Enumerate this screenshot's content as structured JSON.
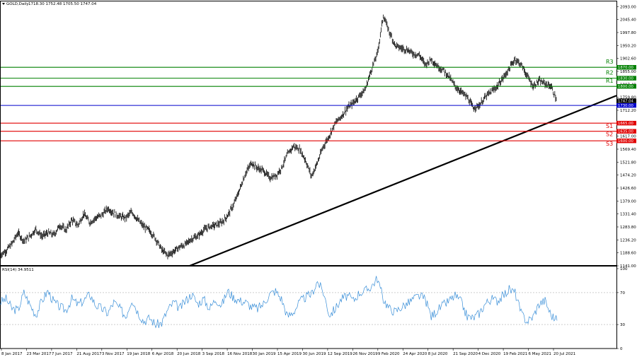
{
  "header": {
    "symbol": "GOLD,Daily",
    "ohlc": "1718.30 1752.48 1705.50 1747.04",
    "arrow": "down-triangle-icon"
  },
  "chart_data": [
    {
      "type": "line",
      "panel": "price",
      "style": "ohlc-bars",
      "x_labels": [
        "8 Jan 2017",
        "23 Mar 2017",
        "7 Jun 2017",
        "21 Aug 2017",
        "3 Nov 2017",
        "19 Jan 2018",
        "6 Apr 2018",
        "20 Jun 2018",
        "3 Sep 2018",
        "16 Nov 2018",
        "30 Jan 2019",
        "15 Apr 2019",
        "30 Jun 2019",
        "12 Sep 2019",
        "26 Nov 2019",
        "9 Feb 2020",
        "24 Apr 2020",
        "8 Jul 2020",
        "21 Sep 2020",
        "4 Dec 2020",
        "19 Feb 2021",
        "6 May 2021",
        "20 Jul 2021"
      ],
      "y_tick_labels": [
        "2093.00",
        "2045.40",
        "1997.80",
        "1950.20",
        "1902.60",
        "1855.00",
        "1807.40",
        "1759.80",
        "1712.20",
        "1664.60",
        "1617.00",
        "1569.40",
        "1521.80",
        "1474.20",
        "1426.60",
        "1379.00",
        "1331.40",
        "1283.80",
        "1236.20",
        "1188.60",
        "1141.00"
      ],
      "ylim": [
        1141,
        2112
      ],
      "series": [
        {
          "values": [
            1180,
            1196,
            1222,
            1262,
            1232,
            1250,
            1275,
            1249,
            1262,
            1255,
            1290,
            1272,
            1310,
            1290,
            1332,
            1300,
            1317,
            1327,
            1352,
            1335,
            1322,
            1317,
            1339,
            1310,
            1285,
            1270,
            1240,
            1200,
            1180,
            1194,
            1210,
            1220,
            1240,
            1250,
            1272,
            1285,
            1290,
            1300,
            1325,
            1365,
            1420,
            1480,
            1520,
            1500,
            1490,
            1465,
            1470,
            1500,
            1550,
            1580,
            1570,
            1530,
            1470,
            1520,
            1580,
            1620,
            1665,
            1690,
            1720,
            1740,
            1765,
            1790,
            1860,
            1920,
            2060,
            2000,
            1950,
            1940,
            1935,
            1920,
            1915,
            1880,
            1900,
            1875,
            1860,
            1835,
            1800,
            1780,
            1760,
            1720,
            1730,
            1760,
            1780,
            1800,
            1830,
            1865,
            1900,
            1880,
            1840,
            1800,
            1820,
            1810,
            1800,
            1747
          ]
        }
      ],
      "trendline": {
        "from": {
          "date": "8 Jul 2018",
          "value": 1141
        },
        "to": {
          "date": "Aug 2021",
          "value": 1766
        },
        "color": "#000000"
      },
      "current_level": {
        "value": 1730.0,
        "label": "1730.00",
        "color": "#0000cc"
      },
      "current_price_label": "1747.04",
      "levels": [
        {
          "name": "R3",
          "value": 1870.0,
          "label": "1870.00",
          "color": "#008000"
        },
        {
          "name": "R2",
          "value": 1830.0,
          "label": "1830.00",
          "color": "#008000"
        },
        {
          "name": "R1",
          "value": 1800.0,
          "label": "1800.00",
          "color": "#008000"
        },
        {
          "name": "S1",
          "value": 1665.0,
          "label": "1665.00",
          "color": "#e00000"
        },
        {
          "name": "S2",
          "value": 1635.0,
          "label": "1635.00",
          "color": "#e00000"
        },
        {
          "name": "S3",
          "value": 1600.0,
          "label": "1600.00",
          "color": "#e00000"
        }
      ]
    },
    {
      "type": "line",
      "panel": "indicator",
      "title": "RSI(14) 34.9511",
      "y_tick_labels": [
        "100",
        "70",
        "30",
        "0"
      ],
      "ylim": [
        0,
        100
      ],
      "color": "#3a8fd8",
      "series": [
        {
          "values": [
            58,
            62,
            50,
            48,
            70,
            55,
            42,
            60,
            72,
            58,
            52,
            48,
            62,
            55,
            60,
            68,
            54,
            50,
            44,
            58,
            50,
            40,
            62,
            46,
            34,
            38,
            30,
            32,
            48,
            58,
            50,
            60,
            68,
            56,
            62,
            50,
            62,
            54,
            72,
            64,
            60,
            58,
            52,
            50,
            56,
            68,
            72,
            62,
            40,
            46,
            58,
            64,
            68,
            84,
            70,
            42,
            50,
            62,
            66,
            60,
            70,
            72,
            78,
            88,
            62,
            50,
            46,
            52,
            56,
            62,
            66,
            62,
            40,
            48,
            54,
            60,
            66,
            58,
            40,
            38,
            44,
            56,
            62,
            60,
            66,
            74,
            70,
            44,
            34,
            40,
            56,
            60,
            42,
            35
          ]
        }
      ]
    }
  ]
}
